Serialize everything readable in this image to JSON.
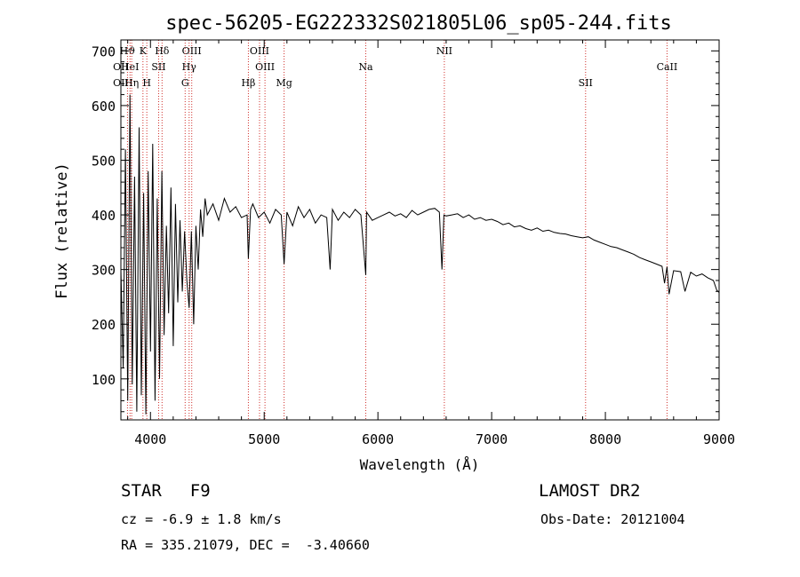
{
  "chart_data": {
    "type": "line",
    "title": "spec-56205-EG222332S021805L06_sp05-244.fits",
    "xlabel": "Wavelength (Å)",
    "ylabel": "Flux (relative)",
    "xlim": [
      3740,
      9000
    ],
    "ylim": [
      25,
      720
    ],
    "x_ticks": [
      4000,
      5000,
      6000,
      7000,
      8000,
      9000
    ],
    "y_ticks": [
      100,
      200,
      300,
      400,
      500,
      600,
      700
    ],
    "grid": false,
    "series": [
      {
        "x": [
          3740,
          3760,
          3780,
          3800,
          3820,
          3840,
          3860,
          3880,
          3900,
          3920,
          3940,
          3960,
          3980,
          4000,
          4020,
          4040,
          4060,
          4080,
          4100,
          4120,
          4140,
          4160,
          4180,
          4200,
          4220,
          4240,
          4260,
          4280,
          4300,
          4320,
          4340,
          4360,
          4380,
          4400,
          4420,
          4440,
          4460,
          4480,
          4500,
          4550,
          4600,
          4650,
          4700,
          4750,
          4800,
          4850,
          4861,
          4880,
          4900,
          4950,
          5000,
          5050,
          5100,
          5150,
          5175,
          5200,
          5250,
          5300,
          5350,
          5400,
          5450,
          5500,
          5550,
          5580,
          5600,
          5650,
          5700,
          5750,
          5800,
          5850,
          5893,
          5900,
          5950,
          6000,
          6050,
          6100,
          6150,
          6200,
          6250,
          6300,
          6350,
          6400,
          6450,
          6500,
          6540,
          6563,
          6580,
          6600,
          6650,
          6700,
          6750,
          6800,
          6850,
          6900,
          6950,
          7000,
          7050,
          7100,
          7150,
          7200,
          7250,
          7300,
          7350,
          7400,
          7450,
          7500,
          7550,
          7600,
          7650,
          7700,
          7750,
          7800,
          7850,
          7900,
          7950,
          8000,
          8050,
          8100,
          8150,
          8200,
          8250,
          8300,
          8350,
          8400,
          8450,
          8498,
          8520,
          8542,
          8560,
          8600,
          8662,
          8700,
          8750,
          8800,
          8850,
          8900,
          8950,
          8980,
          9000
        ],
        "y": [
          300,
          120,
          520,
          60,
          620,
          90,
          470,
          40,
          560,
          70,
          440,
          35,
          480,
          150,
          530,
          60,
          430,
          100,
          480,
          180,
          380,
          220,
          450,
          160,
          420,
          240,
          390,
          260,
          370,
          280,
          230,
          370,
          200,
          380,
          300,
          410,
          360,
          430,
          400,
          420,
          390,
          430,
          405,
          415,
          395,
          400,
          320,
          410,
          420,
          395,
          405,
          385,
          410,
          400,
          310,
          405,
          380,
          415,
          395,
          410,
          385,
          400,
          395,
          300,
          410,
          390,
          405,
          395,
          410,
          400,
          290,
          405,
          390,
          395,
          400,
          405,
          398,
          402,
          395,
          408,
          400,
          405,
          410,
          412,
          405,
          300,
          400,
          398,
          400,
          402,
          395,
          400,
          392,
          395,
          390,
          392,
          388,
          382,
          385,
          378,
          380,
          375,
          372,
          376,
          370,
          372,
          368,
          366,
          365,
          362,
          360,
          358,
          360,
          354,
          350,
          346,
          342,
          340,
          336,
          332,
          328,
          322,
          318,
          314,
          310,
          306,
          275,
          305,
          255,
          298,
          296,
          260,
          295,
          288,
          292,
          285,
          280,
          262,
          258
        ]
      }
    ],
    "line_markers": [
      {
        "label": "OII",
        "wavelength": 3727,
        "row": 1
      },
      {
        "label": "OII",
        "wavelength": 3729,
        "row": 2
      },
      {
        "label": "Hϑ",
        "wavelength": 3798,
        "row": 0
      },
      {
        "label": "HeI",
        "wavelength": 3820,
        "row": 1
      },
      {
        "label": "Hη",
        "wavelength": 3835,
        "row": 2
      },
      {
        "label": "K",
        "wavelength": 3934,
        "row": 0
      },
      {
        "label": "SII",
        "wavelength": 4072,
        "row": 1
      },
      {
        "label": "H",
        "wavelength": 3968,
        "row": 2
      },
      {
        "label": "Hδ",
        "wavelength": 4102,
        "row": 0
      },
      {
        "label": "OIII",
        "wavelength": 4363,
        "row": 0
      },
      {
        "label": "Hγ",
        "wavelength": 4340,
        "row": 1
      },
      {
        "label": "G",
        "wavelength": 4305,
        "row": 2
      },
      {
        "label": "Hβ",
        "wavelength": 4861,
        "row": 2
      },
      {
        "label": "OIII",
        "wavelength": 4959,
        "row": 0
      },
      {
        "label": "OIII",
        "wavelength": 5007,
        "row": 1
      },
      {
        "label": "Mg",
        "wavelength": 5175,
        "row": 2
      },
      {
        "label": "Na",
        "wavelength": 5893,
        "row": 1
      },
      {
        "label": "NII",
        "wavelength": 6584,
        "row": 0
      },
      {
        "label": "SII",
        "wavelength": 7826,
        "row": 2
      },
      {
        "label": "CaII",
        "wavelength": 8542,
        "row": 1
      }
    ]
  },
  "info": {
    "object_class": "STAR",
    "subclass": "F9",
    "redshift_line": "cz = -6.9 ± 1.8 km/s",
    "coords_line": "RA = 335.21079, DEC =  -3.40660",
    "survey": "LAMOST DR2",
    "obs_date": "Obs-Date: 20121004"
  },
  "colors": {
    "axis": "#000000",
    "spectrum": "#000000",
    "marker_line": "#d0302c",
    "background": "#ffffff"
  }
}
